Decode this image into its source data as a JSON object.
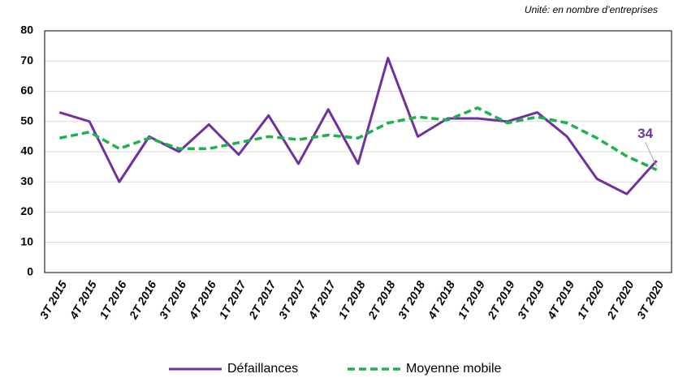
{
  "chart_data": {
    "type": "line",
    "subtitle": "Unité: en nombre d’entreprises",
    "categories": [
      "3T 2015",
      "4T 2015",
      "1T 2016",
      "2T 2016",
      "3T 2016",
      "4T 2016",
      "1T 2017",
      "2T 2017",
      "3T 2017",
      "4T 2017",
      "1T 2018",
      "2T 2018",
      "3T 2018",
      "4T 2018",
      "1T 2019",
      "2T 2019",
      "3T 2019",
      "4T 2019",
      "1T 2020",
      "2T 2020",
      "3T 2020"
    ],
    "series": [
      {
        "name": "Défaillances",
        "color": "#7030a0",
        "dash": false,
        "values": [
          53,
          50,
          30,
          45,
          40,
          49,
          39,
          52,
          36,
          54,
          36,
          71,
          45,
          51,
          51,
          50,
          53,
          45,
          31,
          26,
          37
        ]
      },
      {
        "name": "Moyenne mobile",
        "color": "#1db34a",
        "dash": true,
        "values": [
          44.5,
          46.5,
          41,
          44.5,
          41,
          41,
          43,
          45,
          44,
          45.5,
          44.5,
          49.5,
          51.5,
          50.5,
          54.5,
          49.5,
          51.5,
          49.5,
          44.5,
          38.5,
          34
        ],
        "value_labels": [
          null,
          null,
          null,
          null,
          null,
          null,
          null,
          null,
          null,
          null,
          null,
          null,
          null,
          null,
          null,
          null,
          null,
          null,
          null,
          null,
          "34"
        ]
      }
    ],
    "ylim": [
      0,
      80
    ],
    "yticks": [
      0,
      10,
      20,
      30,
      40,
      50,
      60,
      70,
      80
    ],
    "grid": true,
    "legend": "bottom"
  }
}
